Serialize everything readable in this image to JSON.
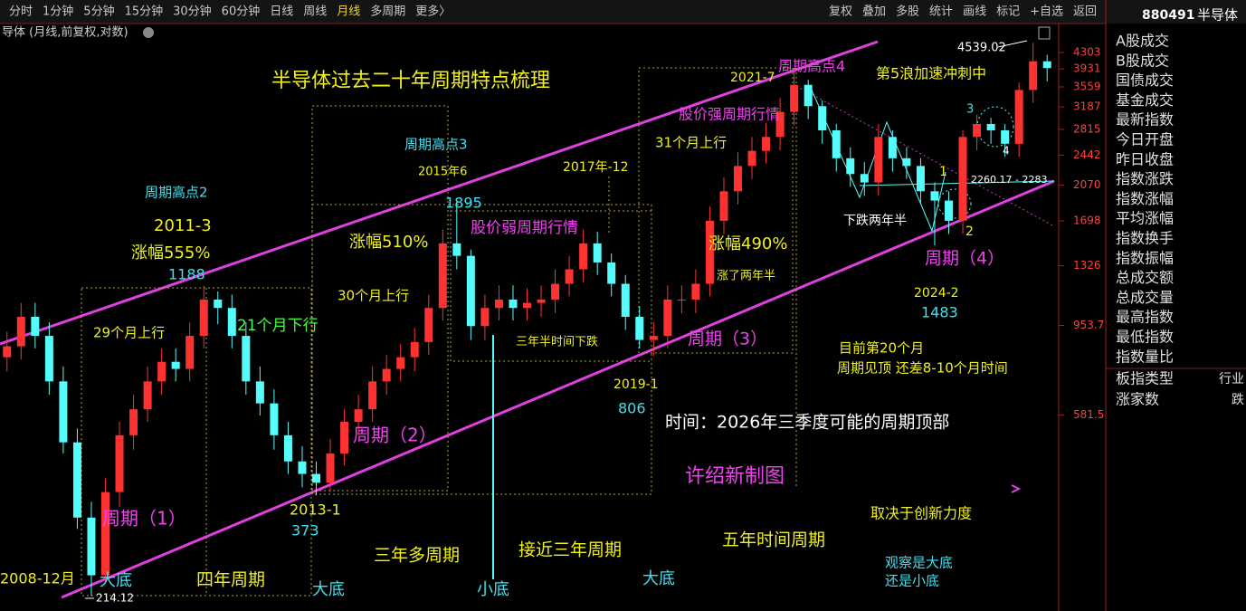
{
  "toolbar": {
    "periods": [
      "分时",
      "1分钟",
      "5分钟",
      "15分钟",
      "30分钟",
      "60分钟",
      "日线",
      "周线",
      "月线",
      "多周期",
      "更多〉"
    ],
    "tools": [
      "复权",
      "叠加",
      "多股",
      "统计",
      "画线",
      "标记",
      "+自选",
      "返回"
    ]
  },
  "side_panel": {
    "code": "880491",
    "name": "半导体",
    "items": [
      "A股成交",
      "B股成交",
      "国债成交",
      "基金成交",
      "最新指数",
      "今日开盘",
      "昨日收盘",
      "指数涨跌",
      "指数涨幅",
      "平均涨幅",
      "指数换手",
      "指数振幅",
      "总成交额",
      "总成交量",
      "最高指数",
      "最低指数",
      "指数量比"
    ],
    "type_label": "板指类型",
    "type_value": "行业",
    "up_label": "涨家数",
    "up_value": "跌"
  },
  "chart_data": {
    "type": "candlestick",
    "subtitle": "导体 (月线,前复权,对数)",
    "log_scale": true,
    "ylim": [
      200,
      5000
    ],
    "yticks": [
      581.5,
      953.7,
      1326,
      1698,
      2070,
      2442,
      2815,
      3187,
      3559,
      3931,
      4303
    ],
    "up_color": "#ff3232",
    "down_color": "#54fcfc",
    "categories": [
      null,
      null,
      null,
      null,
      null,
      null,
      null,
      null,
      null,
      null,
      null,
      null,
      null,
      null,
      null,
      null,
      null,
      null,
      null,
      null,
      null,
      null,
      null,
      null,
      null,
      null,
      null,
      null,
      null,
      null,
      null,
      null,
      null,
      null,
      null,
      null,
      null,
      null,
      null,
      null,
      null,
      null,
      null,
      null,
      null,
      null,
      null,
      null,
      null,
      null,
      null,
      null,
      null,
      null,
      null,
      null,
      null,
      null,
      null,
      null,
      null,
      null,
      null,
      null,
      null,
      null,
      null,
      null,
      null,
      null,
      null,
      null,
      null,
      null,
      null
    ],
    "open": [
      800,
      850,
      1000,
      900,
      700,
      500,
      330,
      240,
      380,
      520,
      600,
      700,
      780,
      750,
      900,
      1100,
      1050,
      900,
      700,
      620,
      520,
      450,
      420,
      400,
      470,
      560,
      600,
      700,
      750,
      800,
      870,
      1050,
      1500,
      1400,
      950,
      1050,
      1100,
      1050,
      1080,
      1100,
      1200,
      1300,
      1500,
      1350,
      1200,
      1000,
      880,
      900,
      1100,
      1100,
      1200,
      1700,
      2000,
      2300,
      2500,
      2700,
      3100,
      3600,
      3200,
      2800,
      2400,
      2200,
      2100,
      2700,
      2400,
      2300,
      2000,
      1900,
      1700,
      2700,
      2900,
      2800,
      2600,
      3500,
      4100
    ],
    "high": [
      920,
      1080,
      1080,
      970,
      760,
      540,
      360,
      410,
      560,
      650,
      760,
      840,
      840,
      970,
      1188,
      1150,
      1130,
      970,
      760,
      670,
      560,
      490,
      450,
      510,
      600,
      650,
      760,
      810,
      860,
      940,
      1130,
      1620,
      1895,
      1450,
      1130,
      1190,
      1190,
      1170,
      1190,
      1300,
      1400,
      1620,
      1600,
      1420,
      1260,
      1060,
      970,
      1190,
      1190,
      1300,
      1840,
      2160,
      2480,
      2700,
      2920,
      3350,
      3950,
      3700,
      3300,
      2900,
      2550,
      2350,
      2900,
      2800,
      2550,
      2400,
      2100,
      2000,
      2800,
      3050,
      3000,
      2900,
      3650,
      4539.02,
      4250
    ],
    "low": [
      740,
      790,
      840,
      650,
      470,
      310,
      214.12,
      230,
      350,
      480,
      560,
      650,
      700,
      700,
      840,
      960,
      840,
      650,
      580,
      480,
      420,
      390,
      373,
      380,
      440,
      520,
      560,
      650,
      700,
      740,
      810,
      980,
      1300,
      880,
      880,
      980,
      980,
      980,
      1000,
      1020,
      1120,
      1210,
      1260,
      1120,
      930,
      840,
      806,
      840,
      1020,
      1020,
      1120,
      1580,
      1860,
      2140,
      2330,
      2510,
      2880,
      2980,
      2600,
      2230,
      2050,
      1950,
      1950,
      2230,
      2140,
      1860,
      1483,
      1580,
      1580,
      2510,
      2600,
      2420,
      2420,
      3260,
      3670
    ],
    "close": [
      850,
      1000,
      900,
      700,
      500,
      330,
      240,
      380,
      520,
      600,
      700,
      780,
      750,
      900,
      1100,
      1050,
      900,
      700,
      620,
      520,
      450,
      420,
      400,
      470,
      560,
      600,
      700,
      750,
      800,
      870,
      1050,
      1500,
      1400,
      950,
      1050,
      1100,
      1050,
      1080,
      1100,
      1200,
      1300,
      1500,
      1350,
      1200,
      1000,
      880,
      900,
      1100,
      1100,
      1200,
      1700,
      2000,
      2300,
      2500,
      2700,
      3100,
      3600,
      3200,
      2800,
      2400,
      2200,
      2100,
      2700,
      2400,
      2300,
      2000,
      1900,
      1700,
      2700,
      2900,
      2800,
      2600,
      3500,
      4100,
      3950
    ],
    "annotations": [
      "半导体过去二十年周期特点梳理",
      "周期高点2",
      "2011-3",
      "涨幅555%",
      "29个月上行",
      "21个月下行",
      "周期（1）",
      "2008-12月",
      "大底",
      "四年周期",
      "2013-1",
      "大底",
      "周期（2）",
      "30个月上行",
      "涨幅510%",
      "周期高点3",
      "2015年6",
      "股价弱周期行情",
      "2017年-12",
      "三年半时间下跌",
      "三年多周期",
      "小底",
      "接近三年周期",
      "2019-1",
      "大底",
      "周期（3）",
      "31个月上行",
      "股价强周期行情",
      "2021-7",
      "周期高点4",
      "涨幅490%",
      "涨了两年半",
      "时间：2026年三季度可能的周期顶部",
      "许绍新制图",
      "五年时间周期",
      "第5浪加速冲刺中",
      "下跌两年半",
      "1",
      "2",
      "3",
      "4",
      "2260.17 - 2283",
      "周期（4）",
      "2024-2",
      "目前第20个月",
      "周期见顶 还差8-10个月时间",
      "取决于创新力度",
      "观察是大底",
      "还是小底"
    ]
  }
}
